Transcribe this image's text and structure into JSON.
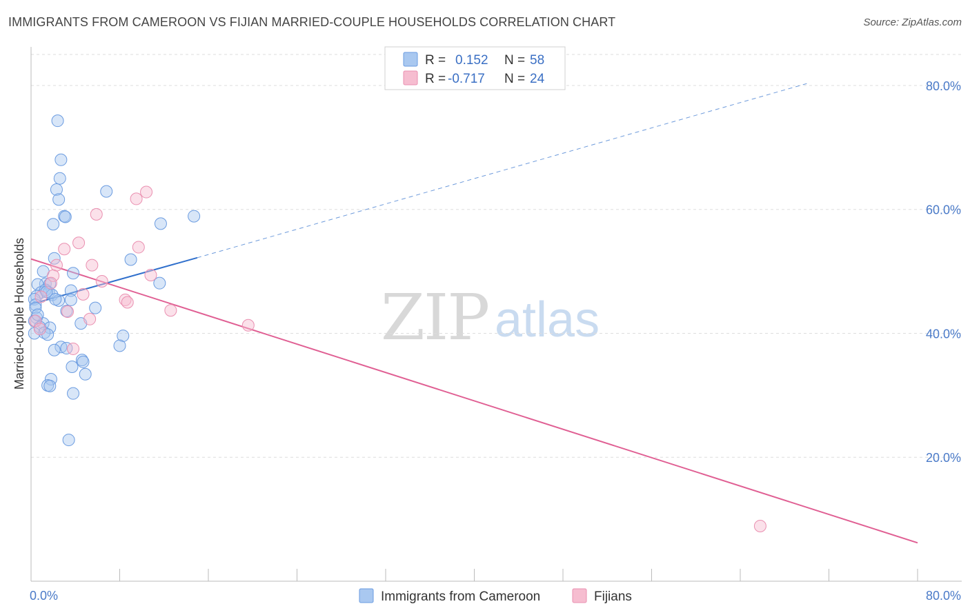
{
  "title": "IMMIGRANTS FROM CAMEROON VS FIJIAN MARRIED-COUPLE HOUSEHOLDS CORRELATION CHART",
  "source": "Source: ZipAtlas.com",
  "watermark": {
    "zip": "ZIP",
    "atlas": "atlas"
  },
  "colors": {
    "cameroon_fill": "#a9c8f0",
    "cameroon_stroke": "#6a9be0",
    "cameroon_line": "#2f6fcc",
    "fijian_fill": "#f6bdd0",
    "fijian_stroke": "#ea8fb0",
    "fijian_line": "#e05f93",
    "grid": "#dddddd",
    "tick_label": "#4a7ac8"
  },
  "legend_top": {
    "rows": [
      {
        "r_label": "R =",
        "r_value": "0.152",
        "n_label": "N =",
        "n_value": "58"
      },
      {
        "r_label": "R =",
        "r_value": "-0.717",
        "n_label": "N =",
        "n_value": "24"
      }
    ]
  },
  "legend_bottom": {
    "items": [
      "Immigrants from Cameroon",
      "Fijians"
    ]
  },
  "chart_data": {
    "type": "scatter",
    "title": "IMMIGRANTS FROM CAMEROON VS FIJIAN MARRIED-COUPLE HOUSEHOLDS CORRELATION CHART",
    "xlabel": "",
    "ylabel": "Married-couple Households",
    "xlim": [
      0,
      80
    ],
    "ylim": [
      0,
      85
    ],
    "x_tick_labels": [
      {
        "value": 0,
        "label": "0.0%"
      },
      {
        "value": 80,
        "label": "80.0%"
      }
    ],
    "y_tick_labels": [
      {
        "value": 20,
        "label": "20.0%"
      },
      {
        "value": 40,
        "label": "40.0%"
      },
      {
        "value": 60,
        "label": "60.0%"
      },
      {
        "value": 80,
        "label": "80.0%"
      }
    ],
    "grid": true,
    "legend_position": "top-center",
    "series": [
      {
        "name": "Immigrants from Cameroon",
        "r": 0.152,
        "n": 58,
        "points": [
          [
            2.4,
            74.3
          ],
          [
            2.7,
            68.0
          ],
          [
            2.6,
            65.0
          ],
          [
            2.3,
            63.2
          ],
          [
            2.5,
            61.6
          ],
          [
            6.8,
            62.9
          ],
          [
            3.0,
            58.9
          ],
          [
            3.1,
            58.8
          ],
          [
            14.7,
            58.9
          ],
          [
            2.0,
            57.6
          ],
          [
            11.7,
            57.7
          ],
          [
            2.1,
            52.1
          ],
          [
            9.0,
            51.9
          ],
          [
            1.1,
            50.0
          ],
          [
            3.8,
            49.7
          ],
          [
            1.3,
            48.0
          ],
          [
            0.6,
            47.9
          ],
          [
            1.7,
            48.0
          ],
          [
            11.6,
            48.1
          ],
          [
            3.6,
            46.9
          ],
          [
            0.9,
            46.6
          ],
          [
            1.6,
            46.6
          ],
          [
            1.3,
            47.0
          ],
          [
            0.5,
            46.0
          ],
          [
            1.9,
            46.2
          ],
          [
            0.3,
            45.5
          ],
          [
            2.5,
            45.3
          ],
          [
            3.6,
            45.4
          ],
          [
            0.4,
            44.6
          ],
          [
            0.4,
            44.1
          ],
          [
            5.8,
            44.1
          ],
          [
            3.2,
            43.6
          ],
          [
            0.5,
            42.5
          ],
          [
            0.3,
            42.0
          ],
          [
            1.1,
            41.6
          ],
          [
            4.5,
            41.6
          ],
          [
            0.8,
            41.0
          ],
          [
            1.7,
            40.9
          ],
          [
            1.2,
            40.1
          ],
          [
            1.5,
            39.8
          ],
          [
            8.3,
            39.6
          ],
          [
            8.0,
            38.0
          ],
          [
            2.7,
            37.8
          ],
          [
            3.2,
            37.6
          ],
          [
            2.1,
            37.3
          ],
          [
            4.6,
            35.7
          ],
          [
            4.7,
            35.4
          ],
          [
            3.7,
            34.6
          ],
          [
            4.9,
            33.4
          ],
          [
            1.8,
            32.6
          ],
          [
            1.5,
            31.6
          ],
          [
            1.7,
            31.5
          ],
          [
            3.8,
            30.3
          ],
          [
            3.4,
            22.8
          ],
          [
            0.3,
            40.0
          ],
          [
            0.6,
            43.0
          ],
          [
            1.4,
            46.7
          ],
          [
            2.2,
            45.5
          ]
        ],
        "trend": {
          "x_start": 0,
          "y_start": 44.7,
          "x_end": 15.0,
          "y_end": 52.2,
          "dashed_to_x": 70.0,
          "dashed_to_y": 80.3
        }
      },
      {
        "name": "Fijians",
        "r": -0.717,
        "n": 24,
        "points": [
          [
            10.4,
            62.8
          ],
          [
            9.5,
            61.7
          ],
          [
            5.9,
            59.2
          ],
          [
            4.3,
            54.6
          ],
          [
            9.7,
            53.9
          ],
          [
            3.0,
            53.6
          ],
          [
            5.5,
            51.0
          ],
          [
            2.3,
            51.0
          ],
          [
            2.0,
            49.3
          ],
          [
            10.8,
            49.4
          ],
          [
            6.4,
            48.4
          ],
          [
            1.8,
            48.1
          ],
          [
            4.7,
            46.3
          ],
          [
            8.5,
            45.4
          ],
          [
            8.7,
            45.0
          ],
          [
            0.9,
            45.9
          ],
          [
            12.6,
            43.7
          ],
          [
            3.3,
            43.5
          ],
          [
            5.3,
            42.3
          ],
          [
            19.6,
            41.3
          ],
          [
            0.4,
            42.0
          ],
          [
            3.8,
            37.5
          ],
          [
            0.8,
            40.7
          ],
          [
            65.8,
            8.9
          ]
        ],
        "trend": {
          "x_start": 0,
          "y_start": 52.0,
          "x_end": 80.0,
          "y_end": 6.2
        }
      }
    ]
  }
}
